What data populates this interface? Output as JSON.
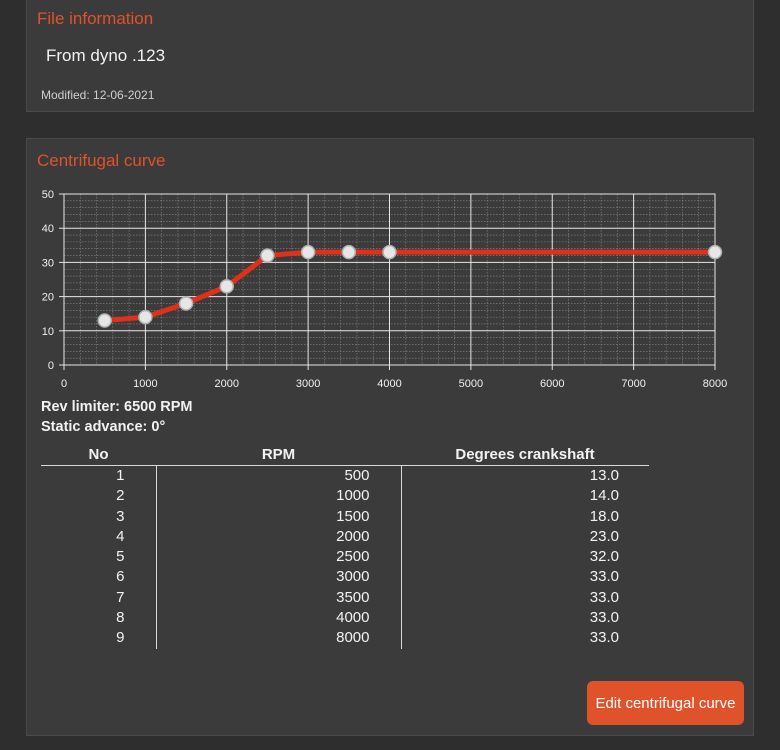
{
  "file_info": {
    "title": "File information",
    "name": "From dyno .123",
    "modified": "Modified: 12-06-2021"
  },
  "curve": {
    "title": "Centrifugal curve",
    "rev_limiter": "Rev limiter: 6500 RPM",
    "static_advance": "Static advance: 0°",
    "table": {
      "headers": [
        "No",
        "RPM",
        "Degrees crankshaft"
      ],
      "rows": [
        [
          "1",
          "500",
          "13.0"
        ],
        [
          "2",
          "1000",
          "14.0"
        ],
        [
          "3",
          "1500",
          "18.0"
        ],
        [
          "4",
          "2000",
          "23.0"
        ],
        [
          "5",
          "2500",
          "32.0"
        ],
        [
          "6",
          "3000",
          "33.0"
        ],
        [
          "7",
          "3500",
          "33.0"
        ],
        [
          "8",
          "4000",
          "33.0"
        ],
        [
          "9",
          "8000",
          "33.0"
        ]
      ]
    },
    "edit_button_label": "Edit centrifugal curve"
  },
  "colors": {
    "accent": "#e0522a",
    "curve_line": "#e0301a"
  },
  "chart_data": {
    "type": "line",
    "title": "",
    "xlabel": "",
    "ylabel": "",
    "xlim": [
      0,
      8000
    ],
    "ylim": [
      0,
      50
    ],
    "x_ticks": [
      "0",
      "1000",
      "2000",
      "3000",
      "4000",
      "5000",
      "6000",
      "7000",
      "8000"
    ],
    "y_ticks": [
      "0",
      "10",
      "20",
      "30",
      "40",
      "50"
    ],
    "grid": true,
    "series": [
      {
        "x": [
          500,
          1000,
          1500,
          2000,
          2500,
          3000,
          3500,
          4000,
          8000
        ],
        "y": [
          13,
          14,
          18,
          23,
          32,
          33,
          33,
          33,
          33
        ]
      }
    ]
  }
}
